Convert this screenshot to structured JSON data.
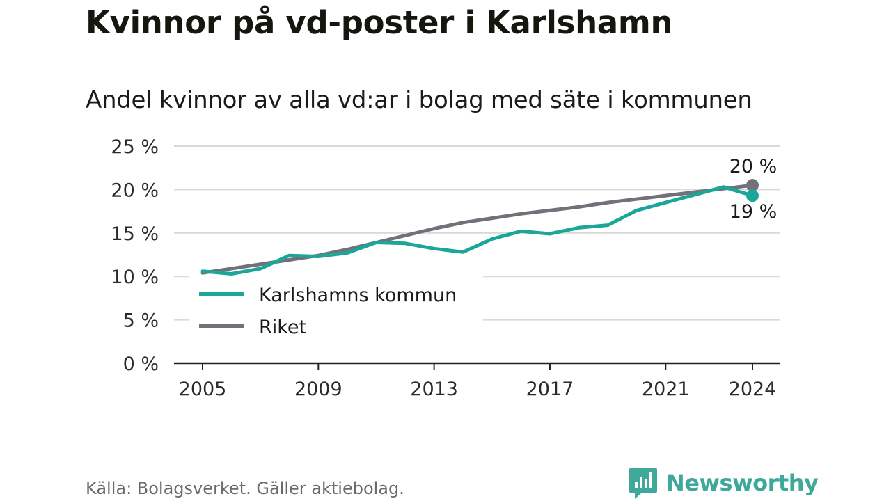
{
  "title": "Kvinnor på vd-poster i Karlshamn",
  "subtitle": "Andel kvinnor av alla vd:ar i bolag med säte i kommunen",
  "source": "Källa: Bolagsverket. Gäller aktiebolag.",
  "brand": {
    "name": "Newsworthy",
    "icon": "newsworthy-bar-chart-icon",
    "color": "#3ea99a"
  },
  "colors": {
    "karlshamn": "#1aa699",
    "riket": "#727078",
    "grid": "#d9d9d9",
    "axis": "#222222"
  },
  "chart_data": {
    "type": "line",
    "x": [
      2005,
      2006,
      2007,
      2008,
      2009,
      2010,
      2011,
      2012,
      2013,
      2014,
      2015,
      2016,
      2017,
      2018,
      2019,
      2020,
      2021,
      2022,
      2023,
      2024
    ],
    "x_tick_labels": [
      "2005",
      "2009",
      "2013",
      "2017",
      "2021",
      "2024"
    ],
    "x_ticks": [
      2005,
      2009,
      2013,
      2017,
      2021,
      2024
    ],
    "y_tick_labels": [
      "0 %",
      "5 %",
      "10 %",
      "15 %",
      "20 %",
      "25 %"
    ],
    "y_ticks": [
      0,
      5,
      10,
      15,
      20,
      25
    ],
    "ylim": [
      0,
      25
    ],
    "grid": true,
    "legend_position": "bottom-left",
    "series": [
      {
        "name": "Karlshamns kommun",
        "key": "karlshamn",
        "values": [
          10.6,
          10.3,
          10.9,
          12.4,
          12.3,
          12.7,
          13.9,
          13.8,
          13.2,
          12.8,
          14.3,
          15.2,
          14.9,
          15.6,
          15.9,
          17.6,
          18.5,
          19.4,
          20.3,
          19.3
        ],
        "end_label": "19 %"
      },
      {
        "name": "Riket",
        "key": "riket",
        "values": [
          10.4,
          10.9,
          11.4,
          11.9,
          12.4,
          13.1,
          13.9,
          14.7,
          15.5,
          16.2,
          16.7,
          17.2,
          17.6,
          18.0,
          18.5,
          18.9,
          19.3,
          19.7,
          20.1,
          20.5
        ],
        "end_label": "20 %"
      }
    ]
  }
}
